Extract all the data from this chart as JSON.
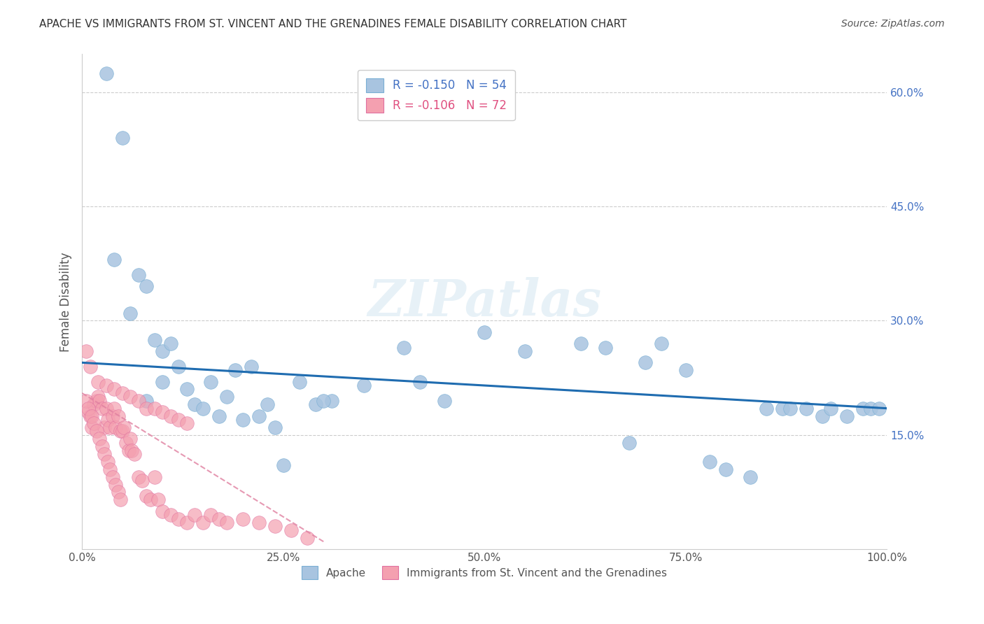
{
  "title": "APACHE VS IMMIGRANTS FROM ST. VINCENT AND THE GRENADINES FEMALE DISABILITY CORRELATION CHART",
  "source": "Source: ZipAtlas.com",
  "xlabel": "",
  "ylabel": "Female Disability",
  "xlim": [
    0,
    1.0
  ],
  "ylim": [
    0,
    0.65
  ],
  "yticks": [
    0.15,
    0.3,
    0.45,
    0.6
  ],
  "ytick_labels": [
    "15.0%",
    "30.0%",
    "45.0%",
    "60.0%"
  ],
  "xticks": [
    0.0,
    0.25,
    0.5,
    0.75,
    1.0
  ],
  "xtick_labels": [
    "0.0%",
    "25.0%",
    "50.0%",
    "75.0%",
    "100.0%"
  ],
  "apache_color": "#a8c4e0",
  "pink_color": "#f4a0b0",
  "trendline_blue": "#1f6cb0",
  "trendline_pink": "#e080a0",
  "legend_R_blue": "R = -0.150",
  "legend_N_blue": "N = 54",
  "legend_R_pink": "R = -0.106",
  "legend_N_pink": "N = 72",
  "label_apache": "Apache",
  "label_pink": "Immigrants from St. Vincent and the Grenadines",
  "watermark": "ZIPatlas",
  "apache_x": [
    0.03,
    0.05,
    0.07,
    0.08,
    0.09,
    0.1,
    0.11,
    0.12,
    0.13,
    0.14,
    0.15,
    0.16,
    0.17,
    0.18,
    0.19,
    0.21,
    0.22,
    0.23,
    0.24,
    0.25,
    0.27,
    0.29,
    0.31,
    0.35,
    0.4,
    0.42,
    0.45,
    0.5,
    0.55,
    0.62,
    0.65,
    0.68,
    0.7,
    0.72,
    0.75,
    0.78,
    0.8,
    0.83,
    0.85,
    0.87,
    0.88,
    0.9,
    0.92,
    0.93,
    0.95,
    0.97,
    0.98,
    0.99,
    0.04,
    0.06,
    0.08,
    0.1,
    0.2,
    0.3
  ],
  "apache_y": [
    0.625,
    0.54,
    0.36,
    0.345,
    0.275,
    0.26,
    0.27,
    0.24,
    0.21,
    0.19,
    0.185,
    0.22,
    0.175,
    0.2,
    0.235,
    0.24,
    0.175,
    0.19,
    0.16,
    0.11,
    0.22,
    0.19,
    0.195,
    0.215,
    0.265,
    0.22,
    0.195,
    0.285,
    0.26,
    0.27,
    0.265,
    0.14,
    0.245,
    0.27,
    0.235,
    0.115,
    0.105,
    0.095,
    0.185,
    0.185,
    0.185,
    0.185,
    0.175,
    0.185,
    0.175,
    0.185,
    0.185,
    0.185,
    0.38,
    0.31,
    0.195,
    0.22,
    0.17,
    0.195
  ],
  "pink_x": [
    0.005,
    0.008,
    0.01,
    0.012,
    0.015,
    0.018,
    0.02,
    0.022,
    0.025,
    0.028,
    0.03,
    0.032,
    0.035,
    0.038,
    0.04,
    0.042,
    0.045,
    0.048,
    0.05,
    0.052,
    0.055,
    0.058,
    0.06,
    0.062,
    0.065,
    0.07,
    0.075,
    0.08,
    0.085,
    0.09,
    0.095,
    0.1,
    0.11,
    0.12,
    0.13,
    0.14,
    0.15,
    0.16,
    0.17,
    0.18,
    0.2,
    0.22,
    0.24,
    0.26,
    0.28,
    0.01,
    0.02,
    0.03,
    0.04,
    0.05,
    0.06,
    0.07,
    0.08,
    0.09,
    0.1,
    0.11,
    0.12,
    0.13,
    0.005,
    0.008,
    0.012,
    0.015,
    0.018,
    0.022,
    0.025,
    0.028,
    0.032,
    0.035,
    0.038,
    0.042,
    0.045,
    0.048
  ],
  "pink_y": [
    0.26,
    0.18,
    0.175,
    0.16,
    0.19,
    0.195,
    0.2,
    0.195,
    0.185,
    0.16,
    0.185,
    0.17,
    0.16,
    0.175,
    0.185,
    0.16,
    0.175,
    0.155,
    0.155,
    0.16,
    0.14,
    0.13,
    0.145,
    0.13,
    0.125,
    0.095,
    0.09,
    0.07,
    0.065,
    0.095,
    0.065,
    0.05,
    0.045,
    0.04,
    0.035,
    0.045,
    0.035,
    0.045,
    0.04,
    0.035,
    0.04,
    0.035,
    0.03,
    0.025,
    0.015,
    0.24,
    0.22,
    0.215,
    0.21,
    0.205,
    0.2,
    0.195,
    0.185,
    0.185,
    0.18,
    0.175,
    0.17,
    0.165,
    0.195,
    0.185,
    0.175,
    0.165,
    0.155,
    0.145,
    0.135,
    0.125,
    0.115,
    0.105,
    0.095,
    0.085,
    0.075,
    0.065
  ]
}
